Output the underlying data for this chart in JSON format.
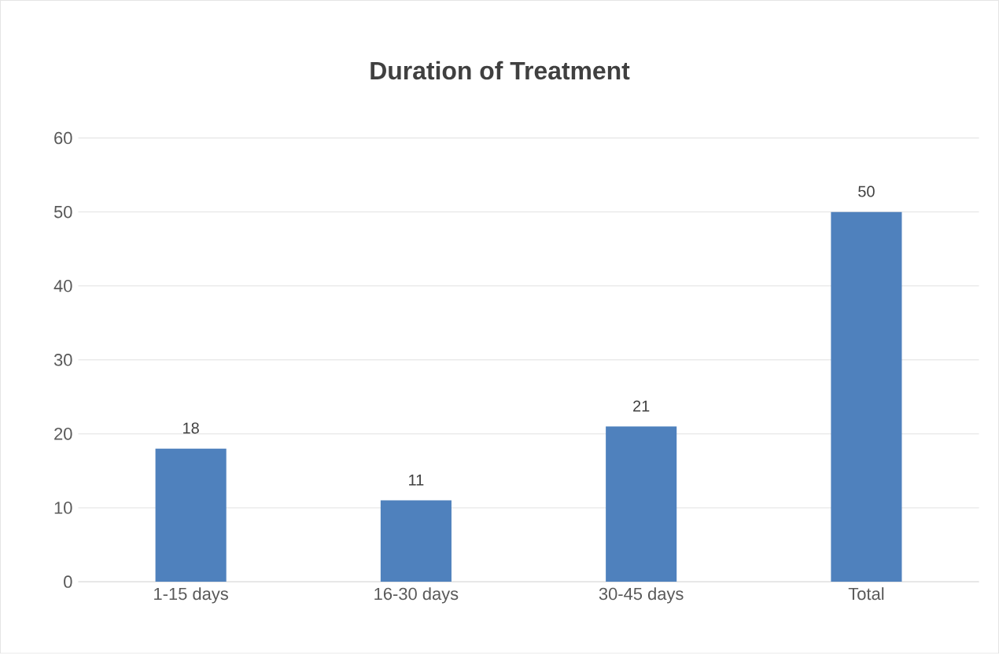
{
  "chart_data": {
    "type": "bar",
    "title": "Duration of Treatment",
    "categories": [
      "1-15 days",
      "16-30 days",
      "30-45 days",
      "Total"
    ],
    "values": [
      18,
      11,
      21,
      50
    ],
    "color": "#4f81bd",
    "ylim": [
      0,
      60
    ],
    "yticks": [
      0,
      10,
      20,
      30,
      40,
      50,
      60
    ],
    "grid": "y",
    "data_labels": true
  }
}
